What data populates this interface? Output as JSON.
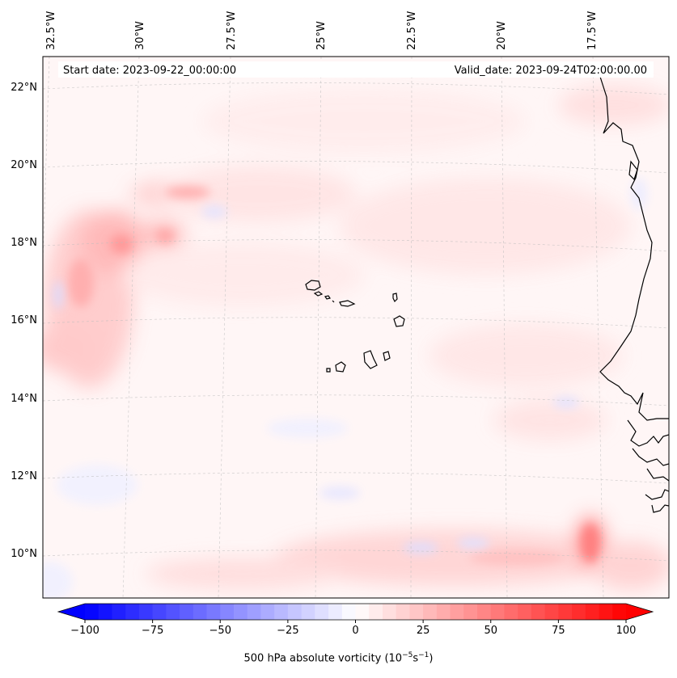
{
  "header": {
    "start_date": "Start date: 2023-09-22_00:00:00",
    "valid_date": "Valid_date: 2023-09-24T02:00:00.00"
  },
  "map": {
    "longitude_labels": [
      "32.5°W",
      "30°W",
      "27.5°W",
      "25°W",
      "22.5°W",
      "20°W",
      "17.5°W"
    ],
    "latitude_labels": [
      "22°N",
      "20°N",
      "18°N",
      "16°N",
      "14°N",
      "12°N",
      "10°N"
    ],
    "field_colormap": "bwr",
    "colors": {
      "negative": "#0000ff",
      "neutral": "#ffffff",
      "positive": "#ff0000",
      "coastline": "#000000"
    }
  },
  "colorbar": {
    "ticks": [
      "−100",
      "−75",
      "−50",
      "−25",
      "0",
      "25",
      "50",
      "75",
      "100"
    ],
    "range": [
      -100,
      100
    ],
    "levels": 40,
    "label_main": "500 hPa absolute vorticity (10",
    "label_exp1": "−5",
    "label_mid": "s",
    "label_exp2": "−1",
    "label_end": ")"
  }
}
